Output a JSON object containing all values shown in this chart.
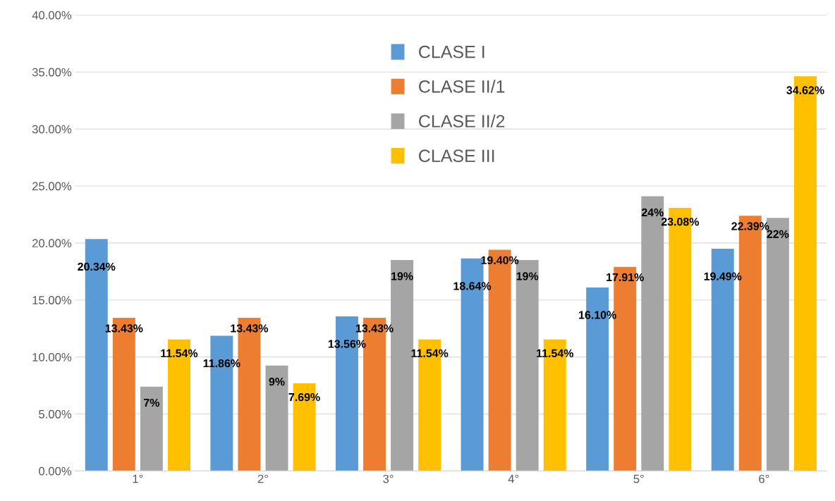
{
  "chart_data": {
    "type": "bar",
    "categories": [
      "1°",
      "2°",
      "3°",
      "4°",
      "5°",
      "6°"
    ],
    "series": [
      {
        "name": "CLASE I",
        "color": "#5b9bd5",
        "values": [
          20.34,
          11.86,
          13.56,
          18.64,
          16.1,
          19.49
        ],
        "value_labels": [
          "20.34%",
          "11.86%",
          "13.56%",
          "18.64%",
          "16.10%",
          "19.49%"
        ]
      },
      {
        "name": "CLASE II/1",
        "color": "#ed7d31",
        "values": [
          13.43,
          13.43,
          13.43,
          19.4,
          17.91,
          22.39
        ],
        "value_labels": [
          "13.43%",
          "13.43%",
          "13.43%",
          "19.40%",
          "17.91%",
          "22.39%"
        ]
      },
      {
        "name": "CLASE II/2",
        "color": "#a5a5a5",
        "values": [
          7.4,
          9.25,
          18.5,
          18.5,
          24.1,
          22.2
        ],
        "value_labels": [
          "7%",
          "9%",
          "19%",
          "19%",
          "24%",
          "22%"
        ]
      },
      {
        "name": "CLASE III",
        "color": "#ffc000",
        "values": [
          11.54,
          7.69,
          11.54,
          11.54,
          23.08,
          34.62
        ],
        "value_labels": [
          "11.54%",
          "7.69%",
          "11.54%",
          "11.54%",
          "23.08%",
          "34.62%"
        ]
      }
    ],
    "ylim": [
      0,
      40
    ],
    "yticks": [
      {
        "value": 0,
        "label": "0.00%"
      },
      {
        "value": 5,
        "label": "5.00%"
      },
      {
        "value": 10,
        "label": "10.00%"
      },
      {
        "value": 15,
        "label": "15.00%"
      },
      {
        "value": 20,
        "label": "20.00%"
      },
      {
        "value": 25,
        "label": "25.00%"
      },
      {
        "value": 30,
        "label": "30.00%"
      },
      {
        "value": 35,
        "label": "35.00%"
      },
      {
        "value": 40,
        "label": "40.00%"
      }
    ],
    "grid": "y",
    "legend": "top"
  }
}
